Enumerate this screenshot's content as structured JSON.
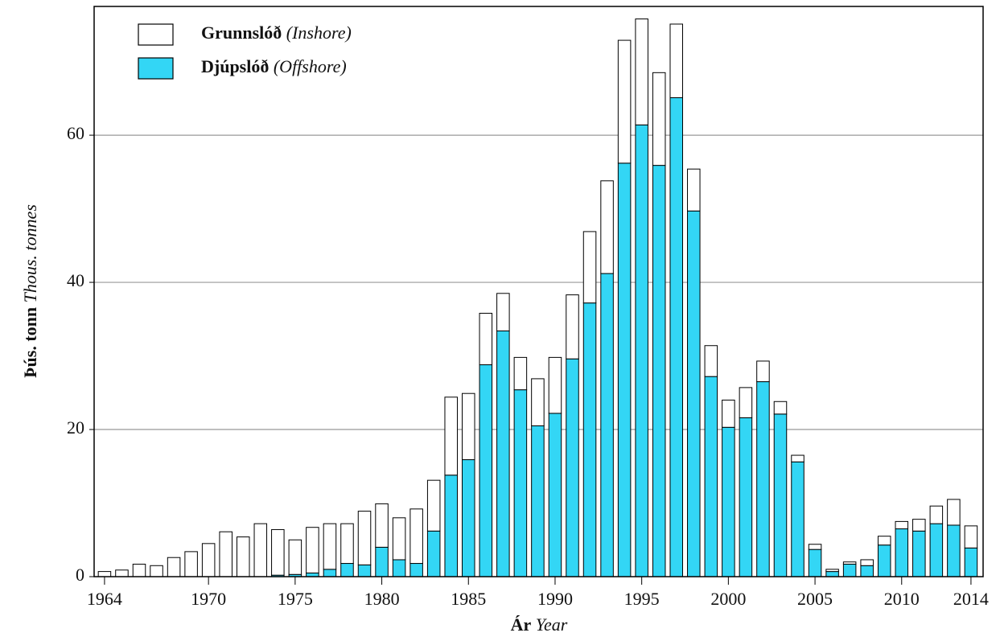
{
  "chart_data": {
    "type": "stacked_bar",
    "ylabel": "Þús. tonn",
    "ylabel_en": "Thous. tonnes",
    "xlabel": "Ár",
    "xlabel_en": "Year",
    "x": [
      1964,
      1965,
      1966,
      1967,
      1968,
      1969,
      1970,
      1971,
      1972,
      1973,
      1974,
      1975,
      1976,
      1977,
      1978,
      1979,
      1980,
      1981,
      1982,
      1983,
      1984,
      1985,
      1986,
      1987,
      1988,
      1989,
      1990,
      1991,
      1992,
      1993,
      1994,
      1995,
      1996,
      1997,
      1998,
      1999,
      2000,
      2001,
      2002,
      2003,
      2004,
      2005,
      2006,
      2007,
      2008,
      2009,
      2010,
      2011,
      2012,
      2013,
      2014
    ],
    "series": [
      {
        "name": "Djúpslóð",
        "name_en": "(Offshore)",
        "color": "#33d6f5",
        "values": [
          0,
          0,
          0,
          0,
          0,
          0,
          0,
          0,
          0,
          0,
          0.2,
          0.3,
          0.5,
          1.0,
          1.8,
          1.6,
          4.0,
          2.3,
          1.8,
          6.2,
          13.8,
          15.9,
          28.8,
          33.4,
          25.4,
          20.5,
          22.2,
          29.6,
          37.2,
          41.2,
          56.2,
          61.4,
          55.9,
          65.1,
          49.7,
          27.2,
          20.3,
          21.6,
          26.5,
          22.1,
          15.6,
          3.7,
          0.7,
          1.7,
          1.5,
          4.3,
          6.5,
          6.2,
          7.2,
          7.0,
          3.9
        ]
      },
      {
        "name": "Grunnslóð",
        "name_en": "(Inshore)",
        "color": "#ffffff",
        "values": [
          0.7,
          0.9,
          1.7,
          1.5,
          2.6,
          3.4,
          4.5,
          6.1,
          5.4,
          7.2,
          6.2,
          4.7,
          6.2,
          6.2,
          5.4,
          7.3,
          5.9,
          5.7,
          7.4,
          6.9,
          10.6,
          9.0,
          7.0,
          5.1,
          4.4,
          6.4,
          7.6,
          8.7,
          9.7,
          12.6,
          16.7,
          14.4,
          12.6,
          10.0,
          5.7,
          4.2,
          3.7,
          4.1,
          2.8,
          1.7,
          0.9,
          0.7,
          0.3,
          0.3,
          0.8,
          1.2,
          1.0,
          1.6,
          2.4,
          3.5,
          3.0
        ]
      }
    ],
    "xlim": [
      1963.4,
      2014.7
    ],
    "xticks": [
      1964,
      1970,
      1975,
      1980,
      1985,
      1990,
      1995,
      2000,
      2005,
      2010,
      2014
    ],
    "ylim": [
      0,
      77.5
    ],
    "yticks": [
      0,
      20,
      40,
      60
    ],
    "grid": true
  }
}
